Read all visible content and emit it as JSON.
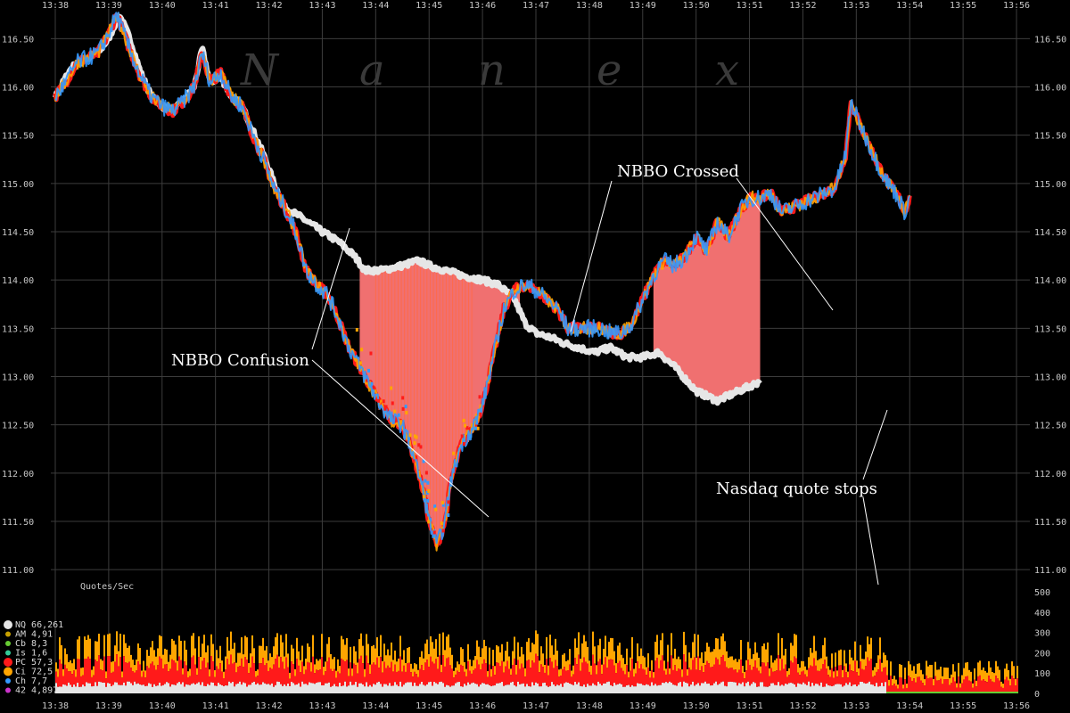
{
  "watermark_letters": [
    "N",
    "a",
    "n",
    "e",
    "x"
  ],
  "colors": {
    "background": "#000000",
    "grid": "#3c3c3c",
    "nasdaq_quote": "#e6e6e6",
    "crossed_fill": "#f07070",
    "trades": [
      "#ff1a1a",
      "#ffa500",
      "#3399ff",
      "#ffffff"
    ],
    "volume_series": [
      "#e6e6e6",
      "#ff1a1a",
      "#ffa500",
      "#66cc33"
    ]
  },
  "chart_data": [
    {
      "type": "area",
      "x_ticks": [
        "13:38",
        "13:39",
        "13:40",
        "13:41",
        "13:42",
        "13:43",
        "13:44",
        "13:45",
        "13:46",
        "13:47",
        "13:48",
        "13:49",
        "13:50",
        "13:51",
        "13:52",
        "13:53",
        "13:54",
        "13:55",
        "13:56"
      ],
      "y_ticks": [
        "116.50",
        "116.00",
        "115.50",
        "115.00",
        "114.50",
        "114.00",
        "113.50",
        "113.00",
        "112.50",
        "112.00",
        "111.50",
        "111.00"
      ],
      "ylim": [
        110.9,
        116.9
      ],
      "grid": true,
      "series": [
        {
          "name": "NQ",
          "points": [
            [
              0.0,
              115.9
            ],
            [
              0.3,
              116.2
            ],
            [
              0.6,
              116.3
            ],
            [
              0.8,
              116.35
            ],
            [
              1.0,
              116.5
            ],
            [
              1.2,
              116.75
            ],
            [
              1.4,
              116.5
            ],
            [
              1.6,
              116.15
            ],
            [
              1.8,
              115.9
            ],
            [
              2.0,
              115.8
            ],
            [
              2.2,
              115.75
            ],
            [
              2.4,
              115.85
            ],
            [
              2.6,
              116.0
            ],
            [
              2.75,
              116.4
            ],
            [
              2.9,
              116.05
            ],
            [
              3.1,
              116.1
            ],
            [
              3.3,
              115.9
            ],
            [
              3.5,
              115.8
            ],
            [
              3.7,
              115.55
            ],
            [
              3.9,
              115.3
            ],
            [
              4.1,
              115.0
            ],
            [
              4.3,
              114.75
            ],
            [
              4.6,
              114.65
            ],
            [
              5.0,
              114.5
            ],
            [
              5.3,
              114.4
            ],
            [
              5.6,
              114.25
            ],
            [
              5.8,
              114.1
            ],
            [
              6.1,
              114.1
            ],
            [
              6.5,
              114.15
            ],
            [
              6.8,
              114.2
            ],
            [
              7.0,
              114.15
            ],
            [
              7.3,
              114.1
            ],
            [
              7.6,
              114.05
            ],
            [
              8.0,
              114.0
            ],
            [
              8.3,
              113.95
            ],
            [
              8.6,
              113.8
            ],
            [
              8.8,
              113.55
            ],
            [
              9.0,
              113.45
            ],
            [
              9.3,
              113.4
            ],
            [
              9.5,
              113.35
            ],
            [
              9.8,
              113.3
            ],
            [
              10.1,
              113.25
            ],
            [
              10.4,
              113.3
            ],
            [
              10.7,
              113.2
            ],
            [
              11.0,
              113.2
            ],
            [
              11.3,
              113.25
            ],
            [
              11.6,
              113.1
            ],
            [
              12.0,
              112.85
            ],
            [
              12.4,
              112.75
            ],
            [
              12.8,
              112.85
            ],
            [
              13.2,
              112.95
            ]
          ]
        },
        {
          "name": "",
          "points": [
            [
              0.0,
              115.9
            ],
            [
              0.2,
              116.05
            ],
            [
              0.4,
              116.25
            ],
            [
              0.6,
              116.3
            ],
            [
              0.8,
              116.35
            ],
            [
              1.0,
              116.55
            ],
            [
              1.15,
              116.75
            ],
            [
              1.35,
              116.45
            ],
            [
              1.6,
              116.1
            ],
            [
              1.8,
              115.9
            ],
            [
              2.0,
              115.8
            ],
            [
              2.2,
              115.75
            ],
            [
              2.4,
              115.85
            ],
            [
              2.6,
              116.0
            ],
            [
              2.75,
              116.35
            ],
            [
              2.9,
              116.05
            ],
            [
              3.1,
              116.15
            ],
            [
              3.3,
              115.9
            ],
            [
              3.5,
              115.8
            ],
            [
              3.7,
              115.5
            ],
            [
              3.9,
              115.25
            ],
            [
              4.1,
              114.95
            ],
            [
              4.3,
              114.75
            ],
            [
              4.5,
              114.5
            ],
            [
              4.7,
              114.1
            ],
            [
              4.9,
              113.95
            ],
            [
              5.1,
              113.85
            ],
            [
              5.3,
              113.6
            ],
            [
              5.5,
              113.3
            ],
            [
              5.7,
              113.1
            ],
            [
              5.9,
              112.9
            ],
            [
              6.1,
              112.7
            ],
            [
              6.3,
              112.55
            ],
            [
              6.5,
              112.5
            ],
            [
              6.7,
              112.2
            ],
            [
              6.9,
              111.8
            ],
            [
              7.0,
              111.5
            ],
            [
              7.15,
              111.25
            ],
            [
              7.3,
              111.5
            ],
            [
              7.4,
              111.9
            ],
            [
              7.6,
              112.3
            ],
            [
              7.8,
              112.45
            ],
            [
              8.0,
              112.7
            ],
            [
              8.2,
              113.2
            ],
            [
              8.4,
              113.7
            ],
            [
              8.6,
              113.9
            ],
            [
              8.8,
              113.95
            ],
            [
              9.0,
              113.9
            ],
            [
              9.2,
              113.8
            ],
            [
              9.4,
              113.7
            ],
            [
              9.6,
              113.5
            ],
            [
              9.8,
              113.5
            ],
            [
              10.0,
              113.5
            ],
            [
              10.2,
              113.5
            ],
            [
              10.4,
              113.45
            ],
            [
              10.6,
              113.45
            ],
            [
              10.8,
              113.55
            ],
            [
              11.0,
              113.8
            ],
            [
              11.2,
              114.05
            ],
            [
              11.4,
              114.2
            ],
            [
              11.6,
              114.15
            ],
            [
              11.8,
              114.25
            ],
            [
              12.0,
              114.45
            ],
            [
              12.2,
              114.3
            ],
            [
              12.4,
              114.6
            ],
            [
              12.6,
              114.45
            ],
            [
              12.8,
              114.7
            ],
            [
              13.0,
              114.85
            ],
            [
              13.2,
              114.85
            ],
            [
              13.4,
              114.9
            ],
            [
              13.6,
              114.7
            ],
            [
              13.8,
              114.75
            ],
            [
              14.0,
              114.8
            ],
            [
              14.2,
              114.85
            ],
            [
              14.4,
              114.9
            ],
            [
              14.6,
              114.95
            ],
            [
              14.8,
              115.3
            ],
            [
              14.9,
              115.85
            ],
            [
              15.0,
              115.7
            ],
            [
              15.2,
              115.45
            ],
            [
              15.4,
              115.2
            ],
            [
              15.6,
              115.0
            ],
            [
              15.8,
              114.85
            ],
            [
              15.9,
              114.7
            ],
            [
              16.0,
              114.85
            ]
          ]
        }
      ]
    },
    {
      "type": "area",
      "title": "Quotes/Sec",
      "y_ticks": [
        "500",
        "400",
        "300",
        "200",
        "100",
        "0"
      ],
      "ylim": [
        0,
        500
      ],
      "legend": [
        {
          "label": "NQ 66,261",
          "color": "#e6e6e6"
        },
        {
          "label": "AM  4,91",
          "color": "#c8a000"
        },
        {
          "label": "Cb  8,3",
          "color": "#66cc33"
        },
        {
          "label": "Is  1,6",
          "color": "#33cc99"
        },
        {
          "label": "PC 57,3",
          "color": "#ff1a1a"
        },
        {
          "label": "Ci 72,5",
          "color": "#ffa500"
        },
        {
          "label": "Ch  7,7",
          "color": "#3399ff"
        },
        {
          "label": "42  4,897",
          "color": "#cc33cc"
        }
      ],
      "nasdaq_level_before": 45,
      "nasdaq_level_after": 0,
      "total_level_before": 160,
      "total_level_after": 105,
      "stop_minute": 15.55
    }
  ],
  "annotations": [
    {
      "text": "NBBO Crossed"
    },
    {
      "text": "NBBO Confusion"
    },
    {
      "text": "Nasdaq quote stops"
    }
  ]
}
